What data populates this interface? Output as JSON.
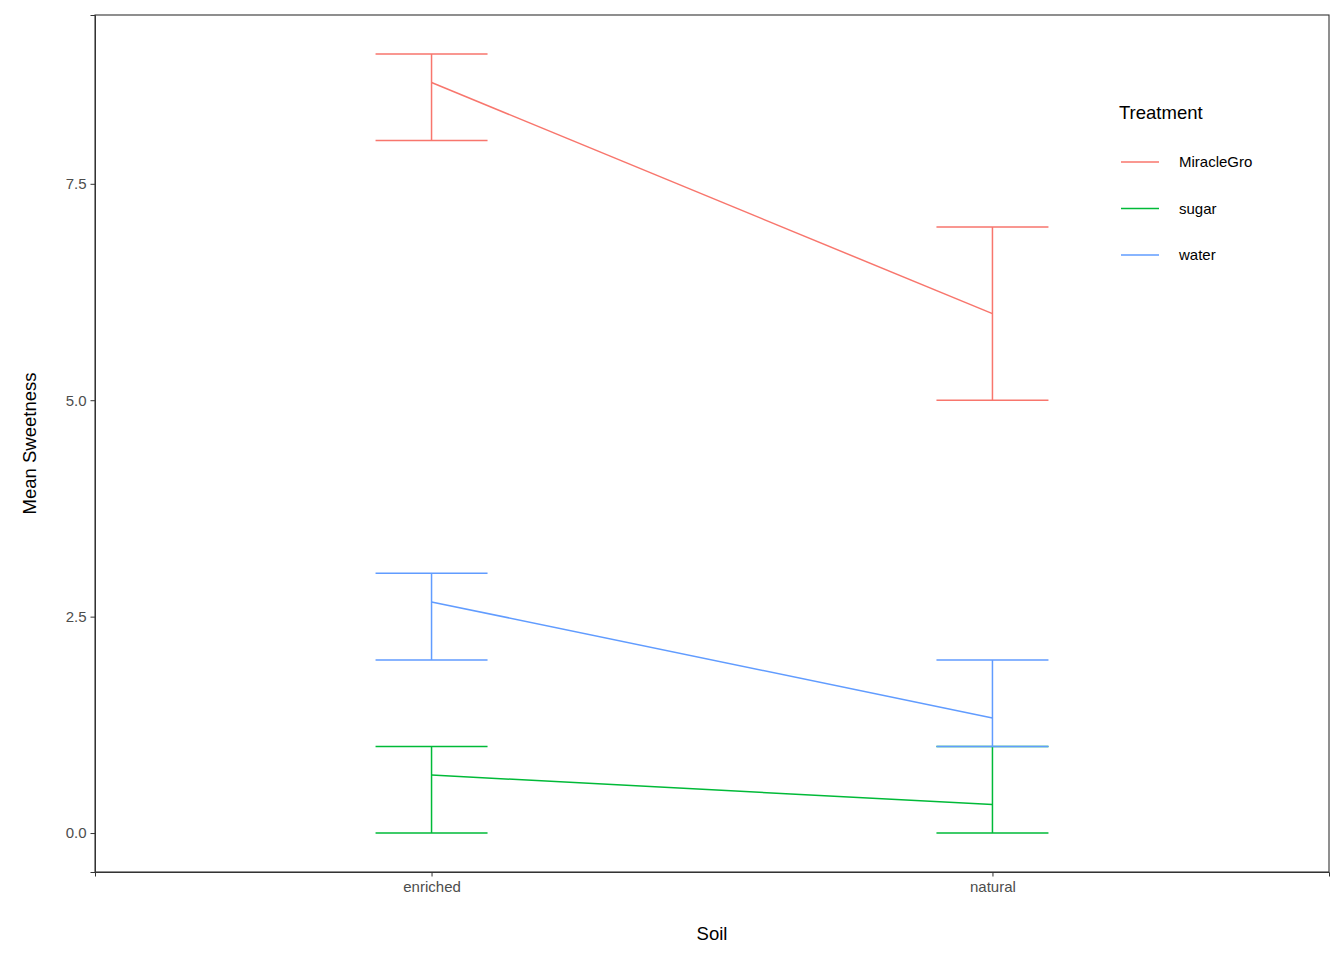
{
  "chart_data": {
    "type": "line",
    "x_label": "Soil",
    "y_label": "Mean Sweetness",
    "legend_title": "Treatment",
    "legend": "top-right",
    "grid": false,
    "categories": [
      "enriched",
      "natural"
    ],
    "ylim": [
      -0.45,
      9.45
    ],
    "yticks": [
      {
        "value": 0,
        "label": "0.0"
      },
      2.5,
      {
        "value": 5,
        "label": "5.0"
      },
      7.5
    ],
    "series": [
      {
        "name": "MiracleGro",
        "color": "#F8766D",
        "values": [
          8.67,
          6.0
        ],
        "lower": [
          8,
          5
        ],
        "upper": [
          9,
          7
        ]
      },
      {
        "name": "sugar",
        "color": "#00BA38",
        "values": [
          0.67,
          0.33
        ],
        "lower": [
          0,
          0
        ],
        "upper": [
          1,
          1
        ]
      },
      {
        "name": "water",
        "color": "#619CFF",
        "values": [
          2.67,
          1.33
        ],
        "lower": [
          2,
          1
        ],
        "upper": [
          3,
          2
        ]
      }
    ]
  }
}
